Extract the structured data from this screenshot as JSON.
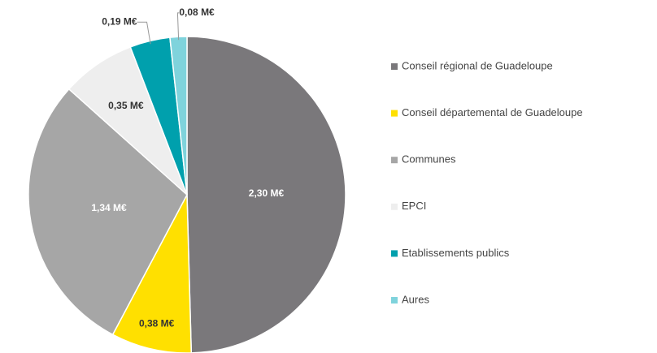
{
  "chart_data": {
    "type": "pie",
    "categories": [
      "Conseil régional de Guadeloupe",
      "Conseil départemental de Guadeloupe",
      "Communes",
      "EPCI",
      "Etablissements publics",
      "Aures"
    ],
    "values": [
      2.3,
      0.38,
      1.34,
      0.35,
      0.19,
      0.08
    ],
    "value_labels": [
      "2,30 M€",
      "0,38 M€",
      "1,34 M€",
      "0,35 M€",
      "0,19 M€",
      "0,08 M€"
    ],
    "colors": [
      "#7a787b",
      "#ffe000",
      "#a6a6a6",
      "#eeeeee",
      "#00a0ad",
      "#7fd3dc"
    ],
    "legend": "right"
  }
}
